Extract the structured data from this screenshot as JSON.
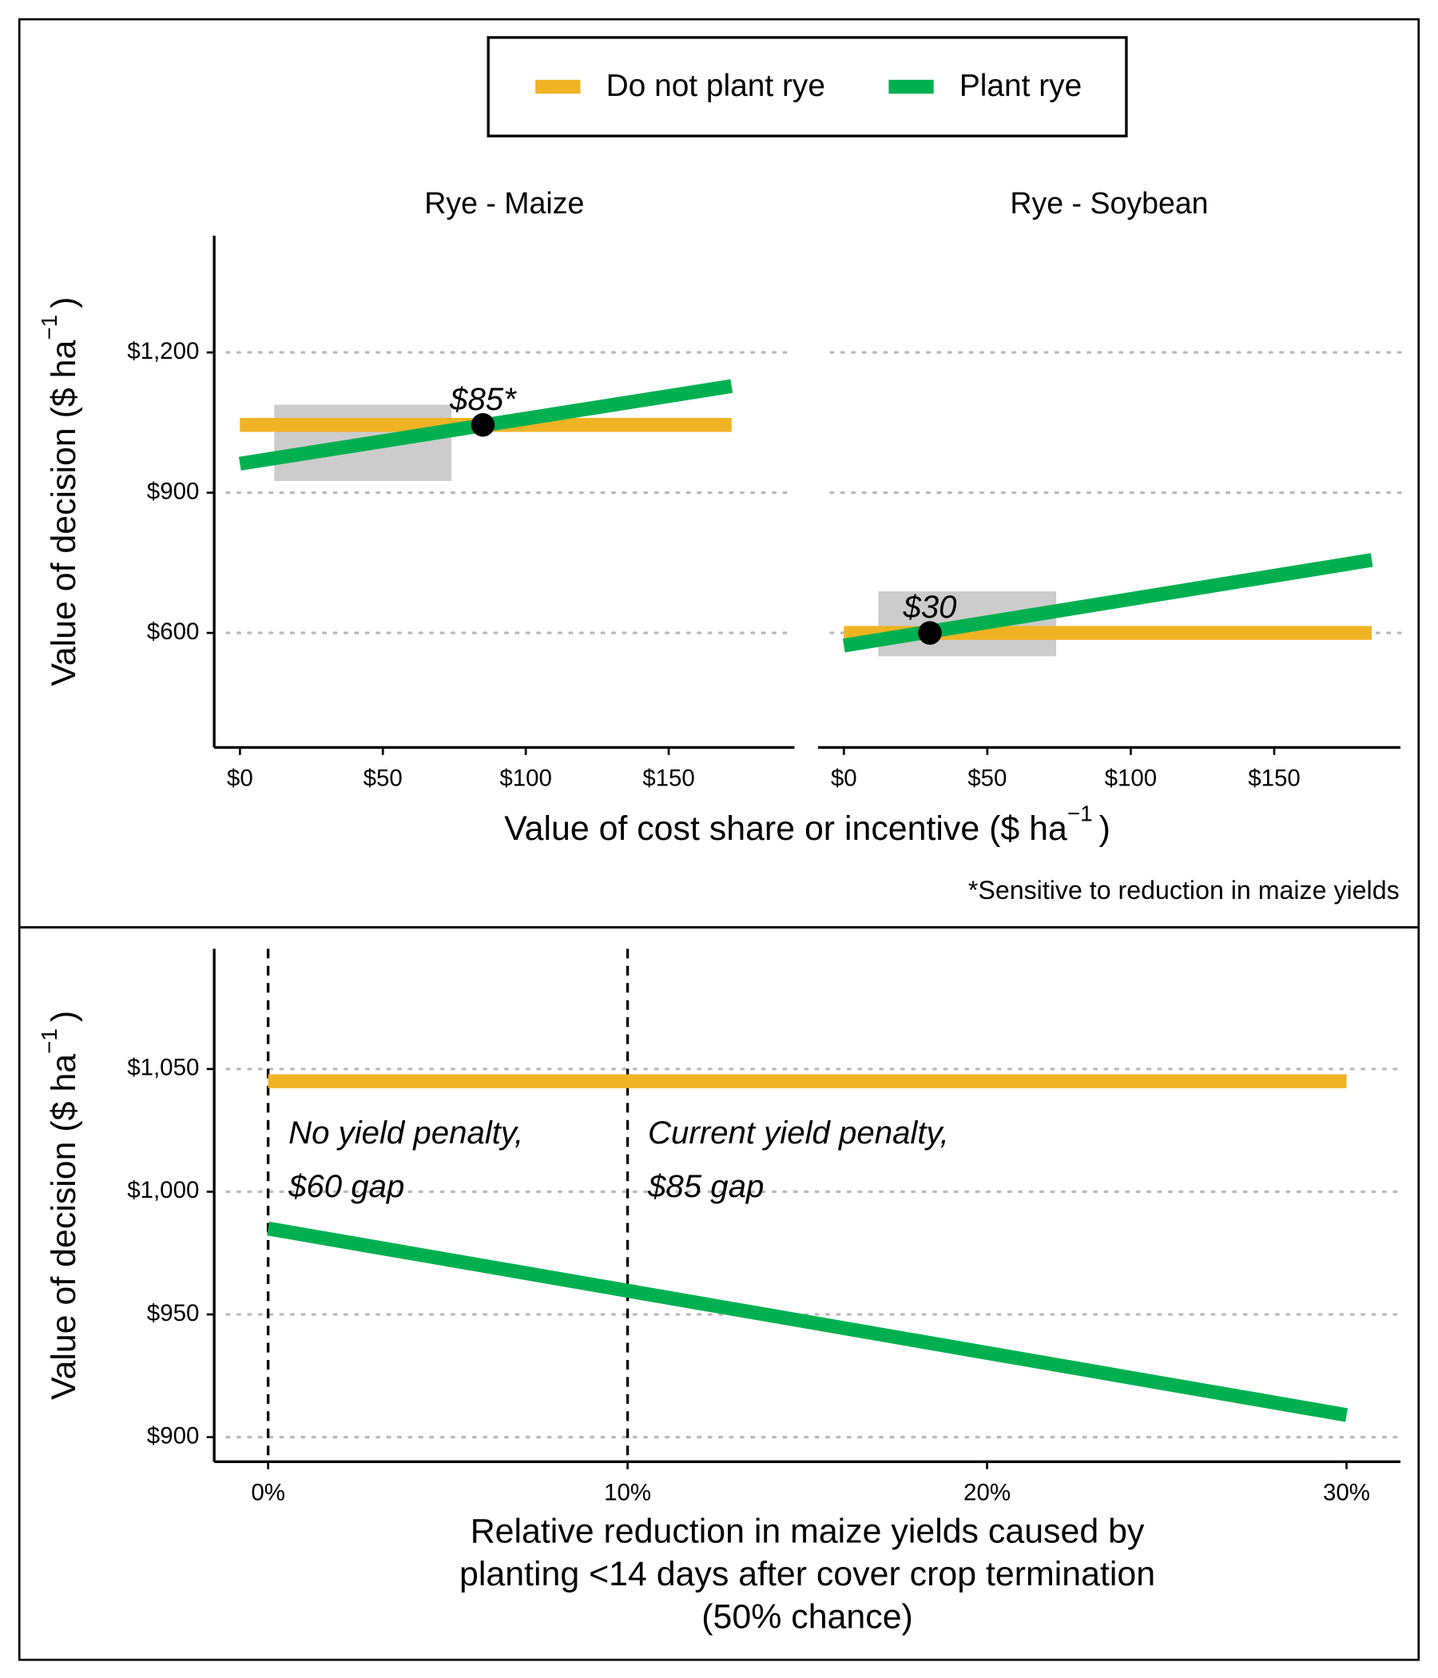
{
  "chart_data": [
    {
      "type": "line",
      "title": "Rye - Maize",
      "xlabel": {
        "text": "Value of cost share or incentive ($  ha",
        "sup": "−1",
        "end": ")"
      },
      "ylabel": {
        "text": "Value of decision ($  ha",
        "sup": "−1",
        "end": ")"
      },
      "note": "*Sensitive to reduction in maize yields",
      "legend": "top",
      "xlim": [
        -9,
        194
      ],
      "xticks": [
        {
          "value": 0,
          "label": "$0"
        },
        {
          "value": 50,
          "label": "$50"
        },
        {
          "value": 100,
          "label": "$100"
        },
        {
          "value": 150,
          "label": "$150"
        }
      ],
      "ylim": [
        355,
        1450
      ],
      "yticks": [
        {
          "value": 600,
          "label": "$600"
        },
        {
          "value": 900,
          "label": "$900"
        },
        {
          "value": 1200,
          "label": "$1,200"
        }
      ],
      "grid": true,
      "series": [
        {
          "name": "Do not plant rye",
          "color": "#f0b323",
          "x": [
            0,
            172
          ],
          "values": [
            1045,
            1045
          ]
        },
        {
          "name": "Plant rye",
          "color": "#00b050",
          "x": [
            0,
            172
          ],
          "values": [
            962,
            1128
          ]
        }
      ],
      "shaded_region": {
        "x": [
          12,
          74
        ],
        "y": [
          925,
          1088
        ],
        "color": "#cccccc"
      },
      "marker": {
        "x": 85,
        "y": 1045,
        "label": "$85*"
      }
    },
    {
      "type": "line",
      "title": "Rye - Soybean",
      "xlim": [
        -9,
        194
      ],
      "xticks": [
        {
          "value": 0,
          "label": "$0"
        },
        {
          "value": 50,
          "label": "$50"
        },
        {
          "value": 100,
          "label": "$100"
        },
        {
          "value": 150,
          "label": "$150"
        }
      ],
      "grid": true,
      "series": [
        {
          "color": "#f0b323",
          "x": [
            0,
            184
          ],
          "values": [
            600,
            600
          ]
        },
        {
          "color": "#00b050",
          "x": [
            0,
            184
          ],
          "values": [
            573,
            756
          ]
        }
      ],
      "shaded_region": {
        "x": [
          12,
          74
        ],
        "y": [
          550,
          689
        ],
        "color": "#cccccc"
      },
      "marker": {
        "x": 30,
        "y": 600,
        "label": "$30"
      }
    },
    {
      "type": "line",
      "xlabel": [
        "Relative reduction in maize yields caused by",
        "planting <14 days after cover crop termination",
        "(50% chance)"
      ],
      "ylabel": {
        "text": "Value of decision ($  ha",
        "sup": "−1",
        "end": ")"
      },
      "xlim": [
        -1.5,
        31.5
      ],
      "xticks": [
        {
          "value": 0,
          "label": "0%"
        },
        {
          "value": 10,
          "label": "10%"
        },
        {
          "value": 20,
          "label": "20%"
        },
        {
          "value": 30,
          "label": "30%"
        }
      ],
      "ylim": [
        890,
        1099
      ],
      "yticks": [
        {
          "value": 900,
          "label": "$900"
        },
        {
          "value": 950,
          "label": "$950"
        },
        {
          "value": 1000,
          "label": "$1,000"
        },
        {
          "value": 1050,
          "label": "$1,050"
        }
      ],
      "grid": true,
      "series": [
        {
          "color": "#f0b323",
          "x": [
            0,
            30
          ],
          "values": [
            1045,
            1045
          ]
        },
        {
          "color": "#00b050",
          "x": [
            0,
            30
          ],
          "values": [
            985,
            909
          ]
        }
      ],
      "vlines": [
        0,
        10
      ],
      "annotations": [
        [
          "No yield penalty,",
          "$60 gap"
        ],
        [
          "Current yield penalty,",
          "$85 gap"
        ]
      ]
    }
  ]
}
